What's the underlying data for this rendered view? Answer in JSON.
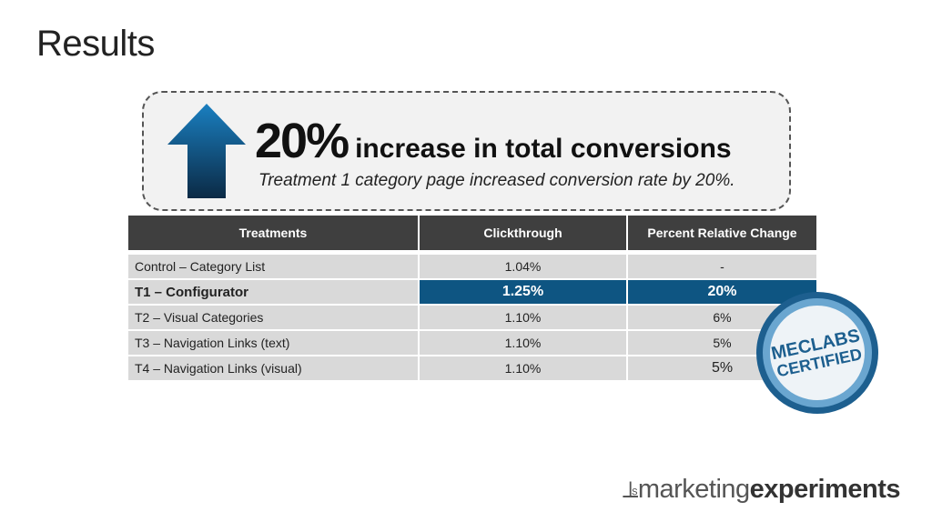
{
  "title": "Results",
  "callout": {
    "big": "20%",
    "headline": "increase in total conversions",
    "subtitle": "Treatment 1 category page increased conversion rate by 20%.",
    "icon": "up-arrow-icon"
  },
  "table": {
    "headers": [
      "Treatments",
      "Clickthrough",
      "Percent Relative Change"
    ],
    "rows": [
      [
        "Control – Category List",
        "1.04%",
        "-"
      ],
      [
        "T1 – Configurator",
        "1.25%",
        "20%"
      ],
      [
        "T2 – Visual Categories",
        "1.10%",
        "6%"
      ],
      [
        "T3 – Navigation Links (text)",
        "1.10%",
        "5%"
      ],
      [
        "T4 – Navigation Links (visual)",
        "1.10%",
        "5%"
      ]
    ],
    "highlight_row": 1
  },
  "badge": {
    "line1": "MECLABS",
    "line2": "CERTIFIED"
  },
  "logo": {
    "part1": "marketing",
    "part2": "experiments"
  },
  "colors": {
    "highlight": "#0e5582",
    "header": "#3f3f3f",
    "row": "#d9d9d9"
  }
}
